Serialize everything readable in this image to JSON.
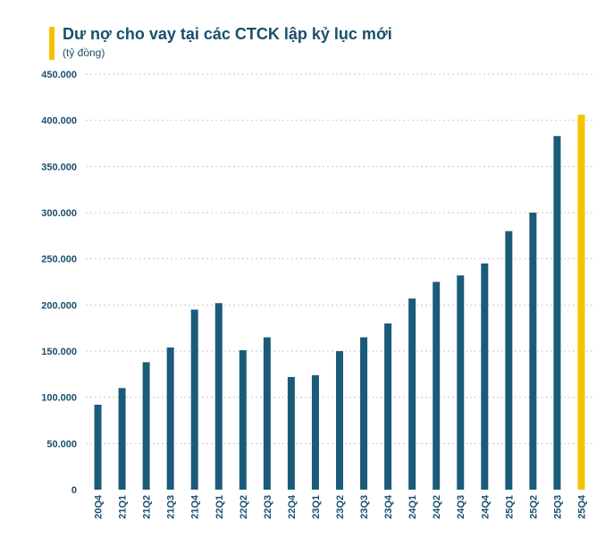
{
  "header": {
    "title": "Dư nợ cho vay tại các CTCK lập kỷ lục mới",
    "unit": "(tỷ đồng)",
    "accent_color": "#f5c200"
  },
  "chart_data": {
    "type": "bar",
    "title": "Dư nợ cho vay tại các CTCK lập kỷ lục mới",
    "ylabel": "",
    "xlabel": "",
    "ylim": [
      0,
      450000
    ],
    "yticks": [
      0,
      50000,
      100000,
      150000,
      200000,
      250000,
      300000,
      350000,
      400000,
      450000
    ],
    "ytick_labels": [
      "0",
      "50.000",
      "100.000",
      "150.000",
      "200.000",
      "250.000",
      "300.000",
      "350.000",
      "400.000",
      "450.000"
    ],
    "grid": true,
    "categories": [
      "20Q4",
      "21Q1",
      "21Q2",
      "21Q3",
      "21Q4",
      "22Q1",
      "22Q2",
      "22Q3",
      "22Q4",
      "23Q1",
      "23Q2",
      "23Q3",
      "23Q4",
      "24Q1",
      "24Q2",
      "24Q3",
      "24Q4",
      "25Q1",
      "25Q2",
      "25Q3",
      "25Q4"
    ],
    "values": [
      92000,
      110000,
      138000,
      154000,
      195000,
      202000,
      151000,
      165000,
      122000,
      124000,
      150000,
      165000,
      180000,
      207000,
      225000,
      232000,
      245000,
      280000,
      300000,
      383000,
      406000
    ],
    "bar_color": "#1b5b7a",
    "highlight_color": "#f5c200",
    "highlight_index": 20
  }
}
